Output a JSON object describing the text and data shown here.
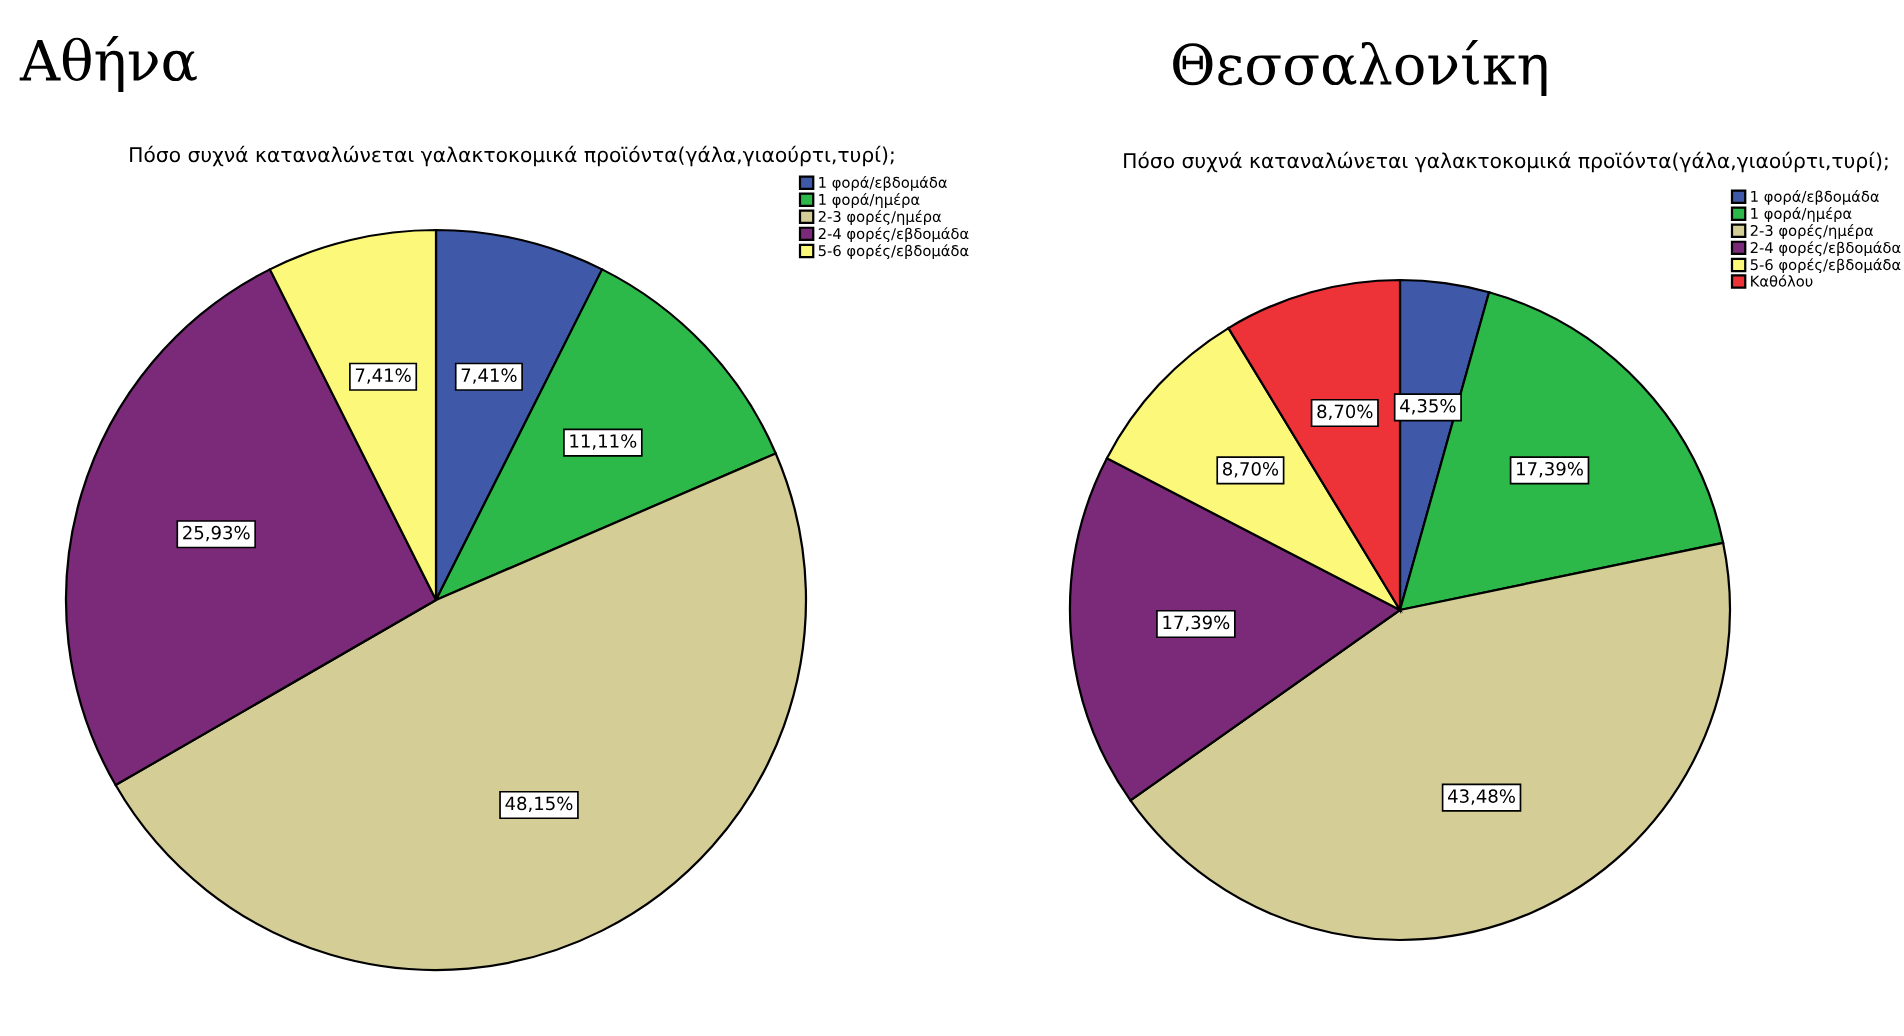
{
  "chart_data": [
    {
      "type": "pie",
      "title": "Αθήνα",
      "subtitle": "Πόσο συχνά καταναλώνεται γαλακτοκομικά προϊόντα(γάλα,γιαούρτι,τυρί);",
      "categories": [
        "1 φορά/εβδομάδα",
        "1 φορά/ημέρα",
        "2-3 φορές/ημέρα",
        "2-4 φορές/εβδομάδα",
        "5-6 φορές/εβδομάδα"
      ],
      "values": [
        7.41,
        11.11,
        48.15,
        25.93,
        7.41
      ],
      "value_labels": [
        "7,41%",
        "11,11%",
        "48,15%",
        "25,93%",
        "7,41%"
      ],
      "colors": [
        "#3f58a8",
        "#2db84a",
        "#d4cd96",
        "#7b2a7a",
        "#fbf87a"
      ],
      "legend": "top right"
    },
    {
      "type": "pie",
      "title": "Θεσσαλονίκη",
      "subtitle": "Πόσο συχνά καταναλώνεται γαλακτοκομικά προϊόντα(γάλα,γιαούρτι,τυρί);",
      "categories": [
        "1 φορά/εβδομάδα",
        "1 φορά/ημέρα",
        "2-3 φορές/ημέρα",
        "2-4 φορές/εβδομάδα",
        "5-6 φορές/εβδομάδα",
        "Καθόλου"
      ],
      "values": [
        4.35,
        17.39,
        43.48,
        17.39,
        8.7,
        8.7
      ],
      "value_labels": [
        "4,35%",
        "17,39%",
        "43,48%",
        "17,39%",
        "8,70%",
        "8,70%"
      ],
      "colors": [
        "#3f58a8",
        "#2db84a",
        "#d4cd96",
        "#7b2a7a",
        "#fbf87a",
        "#ee3338"
      ],
      "legend": "top right"
    }
  ]
}
